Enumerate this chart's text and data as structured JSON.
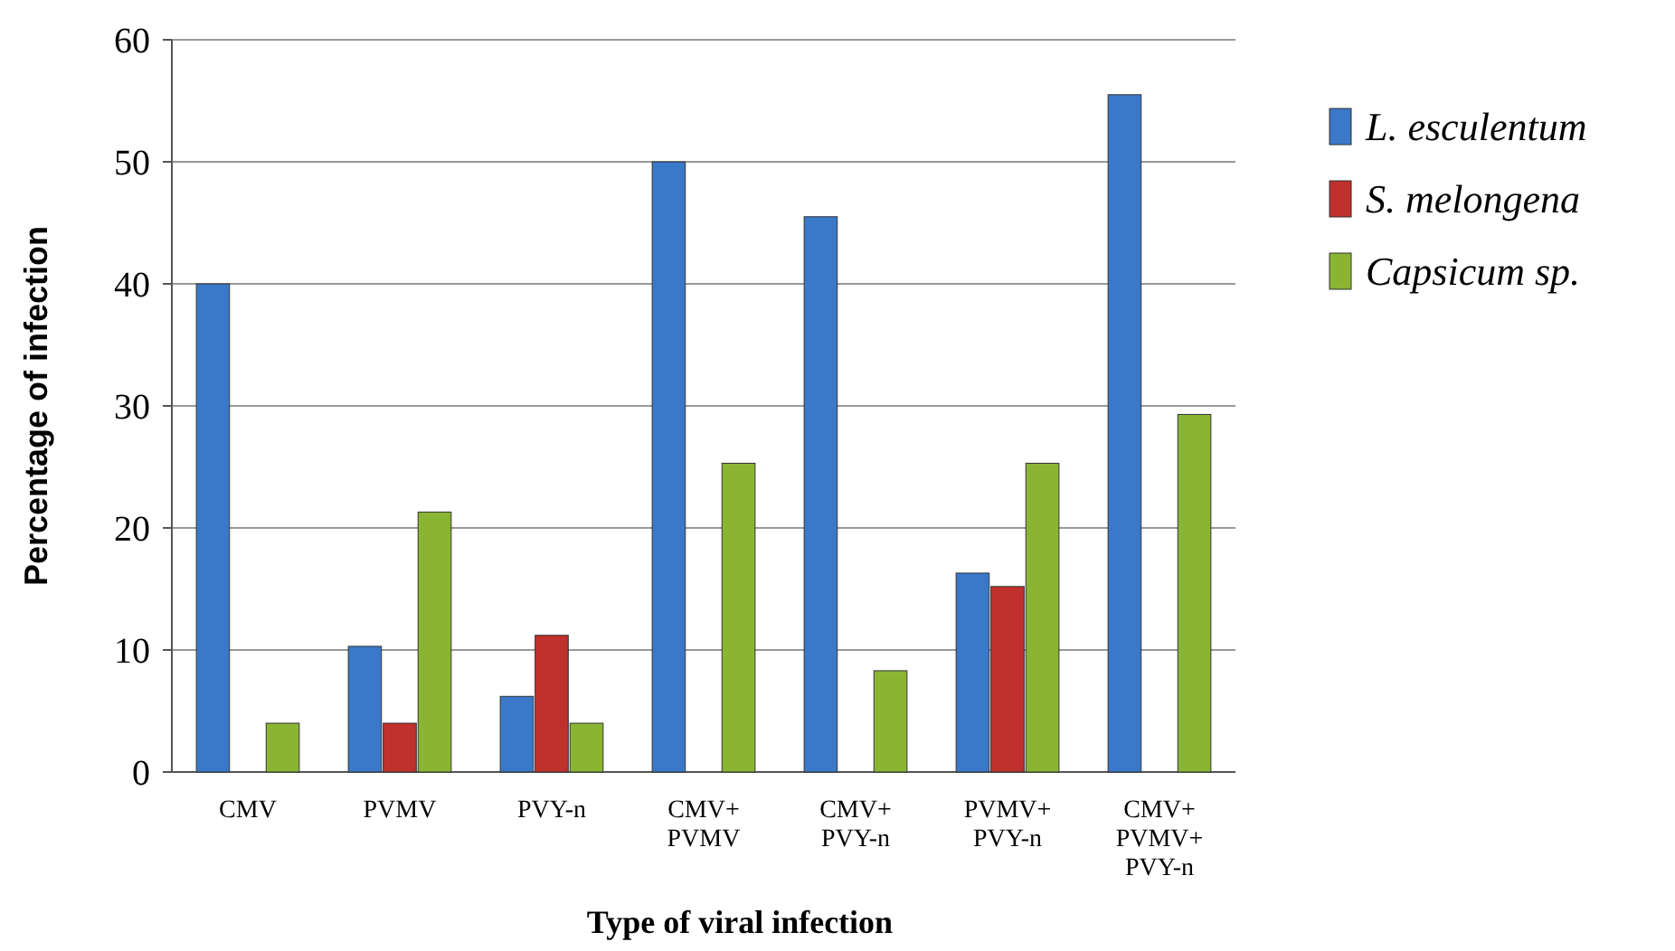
{
  "chart_data": {
    "type": "bar",
    "xlabel": "Type of viral infection",
    "ylabel": "Percentage of infection",
    "categories": [
      "CMV",
      "PVMV",
      "PVY-n",
      "CMV+ PVMV",
      "CMV+ PVY-n",
      "PVMV+ PVY-n",
      "CMV+ PVMV+ PVY-n"
    ],
    "series": [
      {
        "name": "L. esculentum",
        "color": "#3a78c8",
        "values": [
          40,
          10.3,
          6.2,
          50,
          45.5,
          16.3,
          55.5
        ]
      },
      {
        "name": "S. melongena",
        "color": "#c0302c",
        "values": [
          null,
          4,
          11.2,
          null,
          null,
          15.2,
          null
        ]
      },
      {
        "name": "Capsicum sp.",
        "color": "#8ab534",
        "values": [
          4,
          21.3,
          4,
          25.3,
          8.3,
          25.3,
          29.3
        ]
      }
    ],
    "ylim": [
      0,
      60
    ],
    "yticks": [
      0,
      10,
      20,
      30,
      40,
      50,
      60
    ],
    "grid": "y",
    "legend": "right"
  }
}
